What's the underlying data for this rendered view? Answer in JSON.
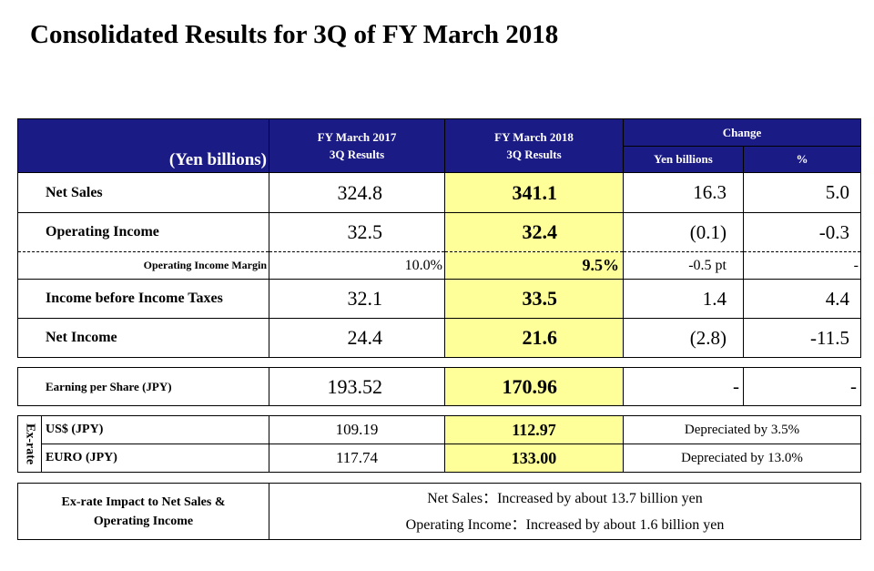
{
  "title": "Consolidated Results for 3Q of FY March 2018",
  "header": {
    "unit": "(Yen billions)",
    "fy2017_line1": "FY March 2017",
    "fy2017_line2": "3Q Results",
    "fy2018_line1": "FY March 2018",
    "fy2018_line2": "3Q Results",
    "change": "Change",
    "change_yen": "Yen billions",
    "change_pct": "%"
  },
  "rows": [
    {
      "label": "Net Sales",
      "fy2017": "324.8",
      "fy2018": "341.1",
      "change": "16.3",
      "pct": "5.0"
    },
    {
      "label": "Operating Income",
      "fy2017": "32.5",
      "fy2018": "32.4",
      "change": "(0.1)",
      "pct": "-0.3"
    },
    {
      "label": "Operating Income Margin",
      "fy2017": "10.0%",
      "fy2018": "9.5%",
      "change": "-0.5 pt",
      "pct": "-"
    },
    {
      "label": "Income before Income Taxes",
      "fy2017": "32.1",
      "fy2018": "33.5",
      "change": "1.4",
      "pct": "4.4"
    },
    {
      "label": "Net Income",
      "fy2017": "24.4",
      "fy2018": "21.6",
      "change": "(2.8)",
      "pct": "-11.5"
    }
  ],
  "eps": {
    "label": "Earning per Share (JPY)",
    "fy2017": "193.52",
    "fy2018": "170.96",
    "change": "-",
    "pct": "-"
  },
  "exrate": {
    "side_label": "Ex-rate",
    "rows": [
      {
        "label": "US$ (JPY)",
        "fy2017": "109.19",
        "fy2018": "112.97",
        "note": "Depreciated by 3.5%"
      },
      {
        "label": "EURO (JPY)",
        "fy2017": "117.74",
        "fy2018": "133.00",
        "note": "Depreciated by 13.0%"
      }
    ]
  },
  "impact": {
    "label_line1": "Ex-rate Impact to Net Sales &",
    "label_line2": "Operating Income",
    "line1": "Net Sales：Increased by about 13.7 billion yen",
    "line2": "Operating Income：Increased by about 1.6 billion yen"
  }
}
